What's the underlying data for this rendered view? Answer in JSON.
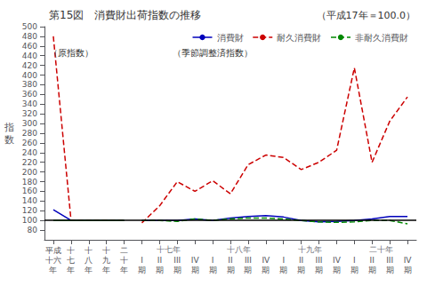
{
  "chart_data": {
    "type": "line",
    "title": "第15図　消費財出荷指数の推移",
    "subtitle": "（平成17年＝100.0）",
    "ylabel": "指数",
    "categories": [
      "平成\n十六\n年",
      "十\n七\n年",
      "十\n八\n年",
      "十\n九\n年",
      "二\n十\n年",
      "I\n期",
      "II\n期",
      "III\n期",
      "IV\n期",
      "I\n期",
      "II\n期",
      "III\n期",
      "IV\n期",
      "I\n期",
      "II\n期",
      "III\n期",
      "IV\n期",
      "I\n期",
      "II\n期",
      "III\n期",
      "IV\n期"
    ],
    "x_groups": [
      {
        "label": "十七年",
        "start": 5,
        "end": 8
      },
      {
        "label": "十八年",
        "start": 9,
        "end": 12
      },
      {
        "label": "十九年",
        "start": 13,
        "end": 16
      },
      {
        "label": "二十年",
        "start": 17,
        "end": 20
      }
    ],
    "series": [
      {
        "name": "消費財",
        "color": "#0000bb",
        "line_style": "solid",
        "values": [
          122,
          100,
          100,
          100,
          100,
          null,
          null,
          null,
          null,
          null,
          null,
          null,
          null,
          null,
          null,
          null,
          null,
          null,
          null,
          null,
          null
        ]
      },
      {
        "name": "耐久消費財",
        "color": "#cc0000",
        "line_style": "dashed",
        "values": [
          480,
          100,
          100,
          100,
          100,
          null,
          null,
          null,
          null,
          null,
          null,
          null,
          null,
          null,
          null,
          null,
          null,
          null,
          null,
          null,
          null
        ]
      },
      {
        "name": "非耐久消費財",
        "color": "#008800",
        "line_style": "solid",
        "values": [
          100,
          100,
          100,
          100,
          100,
          null,
          null,
          null,
          null,
          null,
          null,
          null,
          null,
          null,
          null,
          null,
          null,
          null,
          null,
          null,
          null
        ]
      },
      {
        "name": "消費財",
        "color": "#0000bb",
        "line_style": "solid",
        "values": [
          null,
          null,
          null,
          null,
          null,
          100,
          100,
          100,
          103,
          100,
          105,
          108,
          110,
          107,
          100,
          97,
          98,
          100,
          103,
          108,
          108
        ]
      },
      {
        "name": "耐久消費財",
        "color": "#cc0000",
        "line_style": "dashed",
        "values": [
          null,
          null,
          null,
          null,
          null,
          95,
          130,
          180,
          160,
          182,
          155,
          215,
          235,
          230,
          205,
          220,
          245,
          415,
          220,
          305,
          355
        ]
      },
      {
        "name": "非耐久消費財",
        "color": "#008800",
        "line_style": "dashed",
        "values": [
          null,
          null,
          null,
          null,
          null,
          100,
          100,
          98,
          103,
          100,
          103,
          105,
          105,
          103,
          100,
          97,
          96,
          97,
          100,
          100,
          93
        ]
      }
    ],
    "hline": 100,
    "annotations": [
      {
        "text": "（原指数）",
        "x": 1,
        "y": 455
      },
      {
        "text": "（季節調整済指数）",
        "x": 9,
        "y": 455
      }
    ],
    "ylim": [
      60,
      500
    ],
    "yticks": [
      80,
      100,
      120,
      140,
      160,
      180,
      200,
      220,
      240,
      260,
      280,
      300,
      320,
      340,
      360,
      380,
      400,
      420,
      440,
      460,
      480,
      500
    ],
    "grid": false,
    "legend": "upper right"
  }
}
